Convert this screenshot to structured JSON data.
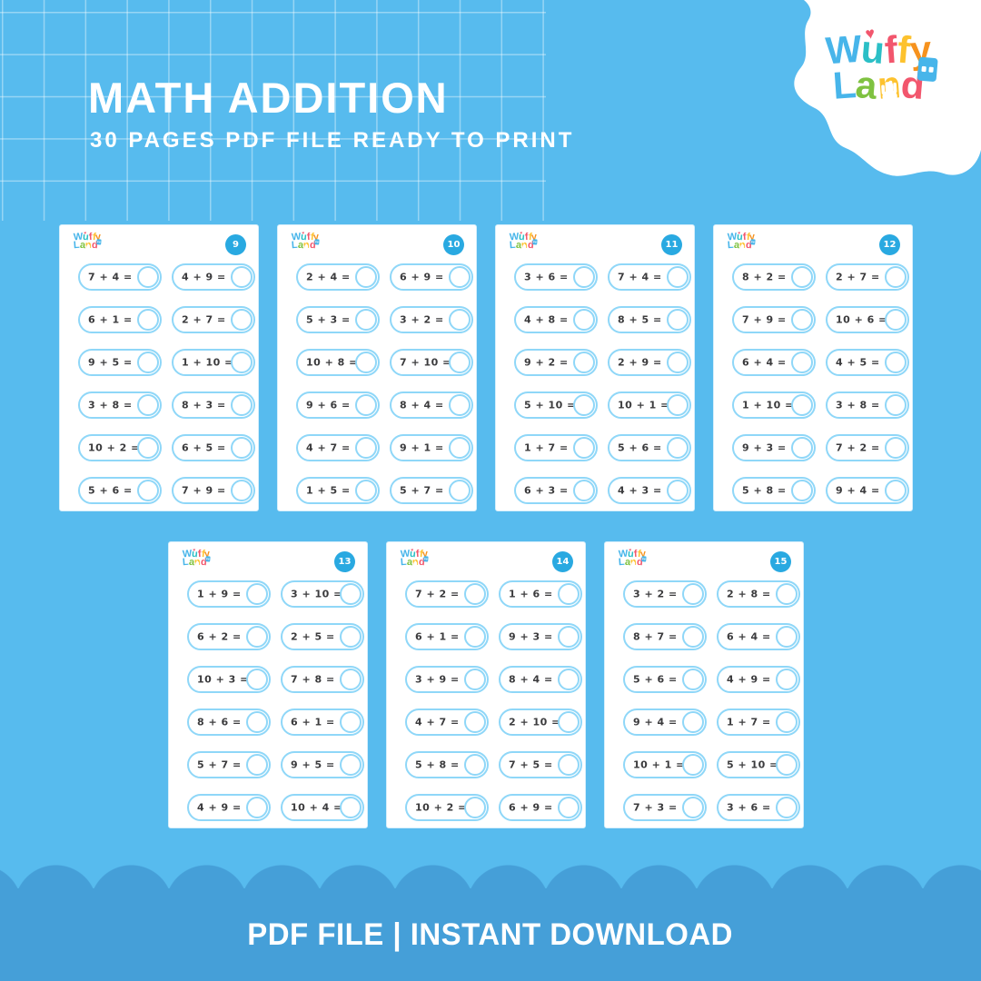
{
  "header": {
    "title": "MATH ADDITION",
    "subtitle": "30 PAGES PDF FILE READY TO PRINT"
  },
  "brand": {
    "line1": [
      {
        "ch": "W",
        "color": "#47B5EA"
      },
      {
        "ch": "u",
        "color": "#2BBFC6",
        "heart": true
      },
      {
        "ch": "f",
        "color": "#F2566D"
      },
      {
        "ch": "f",
        "color": "#FDC22E"
      },
      {
        "ch": "y",
        "color": "#F6921E"
      }
    ],
    "line2": [
      {
        "ch": "L",
        "color": "#47B5EA"
      },
      {
        "ch": "a",
        "color": "#7FC241"
      },
      {
        "ch": "n",
        "color": "#FDC22E",
        "hand": true
      },
      {
        "ch": "d",
        "color": "#F2566D",
        "house": true
      }
    ],
    "heart_color": "#F2566D",
    "house_color": "#47B5EA"
  },
  "footer": {
    "label": "PDF FILE | INSTANT DOWNLOAD"
  },
  "colors": {
    "background": "#57BBEE",
    "banner": "#459FD8",
    "badge": "#29A9E1",
    "pill_border": "#8FD7F8",
    "problem_text": "#3B3B3D",
    "title_text": "#FFFFFF"
  },
  "pages": [
    {
      "number": "9",
      "problems": [
        "7 + 4 =",
        "4 + 9 =",
        "6 + 1 =",
        "2 + 7 =",
        "9 + 5 =",
        "1 + 10 =",
        "3 + 8 =",
        "8 + 3 =",
        "10 + 2 =",
        "6 + 5 =",
        "5 + 6 =",
        "7 + 9 ="
      ]
    },
    {
      "number": "10",
      "problems": [
        "2 + 4 =",
        "6 + 9 =",
        "5 + 3 =",
        "3 + 2 =",
        "10 + 8 =",
        "7 + 10 =",
        "9 + 6 =",
        "8 + 4 =",
        "4 + 7 =",
        "9 + 1 =",
        "1 + 5 =",
        "5 + 7 ="
      ]
    },
    {
      "number": "11",
      "problems": [
        "3 + 6 =",
        "7 + 4 =",
        "4 + 8 =",
        "8 + 5 =",
        "9 + 2 =",
        "2 + 9 =",
        "5 + 10 =",
        "10 + 1 =",
        "1 + 7 =",
        "5 + 6 =",
        "6 + 3 =",
        "4 + 3 ="
      ]
    },
    {
      "number": "12",
      "problems": [
        "8 + 2 =",
        "2 + 7 =",
        "7 + 9 =",
        "10 + 6 =",
        "6 + 4 =",
        "4 + 5 =",
        "1 + 10 =",
        "3 + 8 =",
        "9 + 3 =",
        "7 + 2 =",
        "5 + 8 =",
        "9 + 4 ="
      ]
    },
    {
      "number": "13",
      "problems": [
        "1 + 9 =",
        "3 + 10 =",
        "6 + 2 =",
        "2 + 5 =",
        "10 + 3 =",
        "7 + 8 =",
        "8 + 6 =",
        "6 + 1 =",
        "5 + 7 =",
        "9 + 5 =",
        "4 + 9 =",
        "10 + 4 ="
      ]
    },
    {
      "number": "14",
      "problems": [
        "7 + 2 =",
        "1 + 6 =",
        "6 + 1 =",
        "9 + 3 =",
        "3 + 9 =",
        "8 + 4 =",
        "4 + 7 =",
        "2 + 10 =",
        "5 + 8 =",
        "7 + 5 =",
        "10 + 2 =",
        "6 + 9 ="
      ]
    },
    {
      "number": "15",
      "problems": [
        "3 + 2 =",
        "2 + 8 =",
        "8 + 7 =",
        "6 + 4 =",
        "5 + 6 =",
        "4 + 9 =",
        "9 + 4 =",
        "1 + 7 =",
        "10 + 1 =",
        "5 + 10 =",
        "7 + 3 =",
        "3 + 6 ="
      ]
    }
  ]
}
